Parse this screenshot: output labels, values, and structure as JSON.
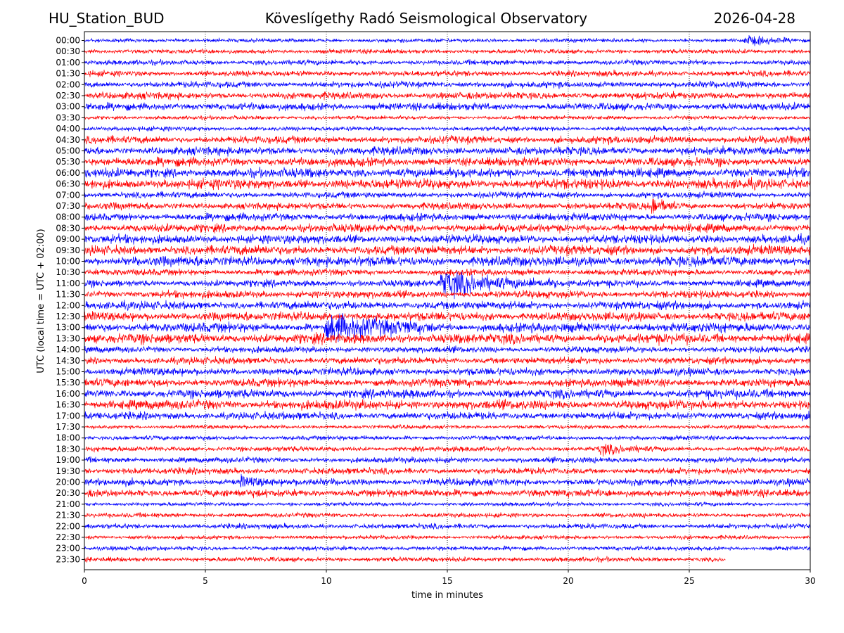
{
  "header": {
    "station": "HU_Station_BUD",
    "observatory": "Köveslígethy Radó Seismological Observatory",
    "date": "2026-04-28"
  },
  "chart_data": {
    "type": "line",
    "xlabel": "time in minutes",
    "ylabel": "UTC (local time = UTC + 02:00)",
    "xlim": [
      0,
      30
    ],
    "x_ticks": [
      0,
      5,
      10,
      15,
      20,
      25,
      30
    ],
    "grid": "vertical dotted lines at x ticks",
    "trace_colors": [
      "#0000ff",
      "#ff0000"
    ],
    "rows": [
      "00:00",
      "00:30",
      "01:00",
      "01:30",
      "02:00",
      "02:30",
      "03:00",
      "03:30",
      "04:00",
      "04:30",
      "05:00",
      "05:30",
      "06:00",
      "06:30",
      "07:00",
      "07:30",
      "08:00",
      "08:30",
      "09:00",
      "09:30",
      "10:00",
      "10:30",
      "11:00",
      "11:30",
      "12:00",
      "12:30",
      "13:00",
      "13:30",
      "14:00",
      "14:30",
      "15:00",
      "15:30",
      "16:00",
      "16:30",
      "17:00",
      "17:30",
      "18:00",
      "18:30",
      "19:00",
      "19:30",
      "20:00",
      "20:30",
      "21:00",
      "21:30",
      "22:00",
      "22:30",
      "23:00",
      "23:30"
    ],
    "events": [
      {
        "row": "11:00",
        "start_min": 14.6,
        "end_min": 19.5,
        "amplitude": "large"
      },
      {
        "row": "13:00",
        "start_min": 9.9,
        "end_min": 14.5,
        "amplitude": "large"
      },
      {
        "row": "07:30",
        "start_min": 23.4,
        "end_min": 24.5,
        "amplitude": "moderate"
      },
      {
        "row": "00:00",
        "start_min": 27.2,
        "end_min": 29.5,
        "amplitude": "small"
      },
      {
        "row": "20:00",
        "start_min": 6.4,
        "end_min": 7.8,
        "amplitude": "small"
      },
      {
        "row": "18:30",
        "start_min": 21.2,
        "end_min": 23.3,
        "amplitude": "small"
      }
    ],
    "last_row_end_min": 26.5
  }
}
